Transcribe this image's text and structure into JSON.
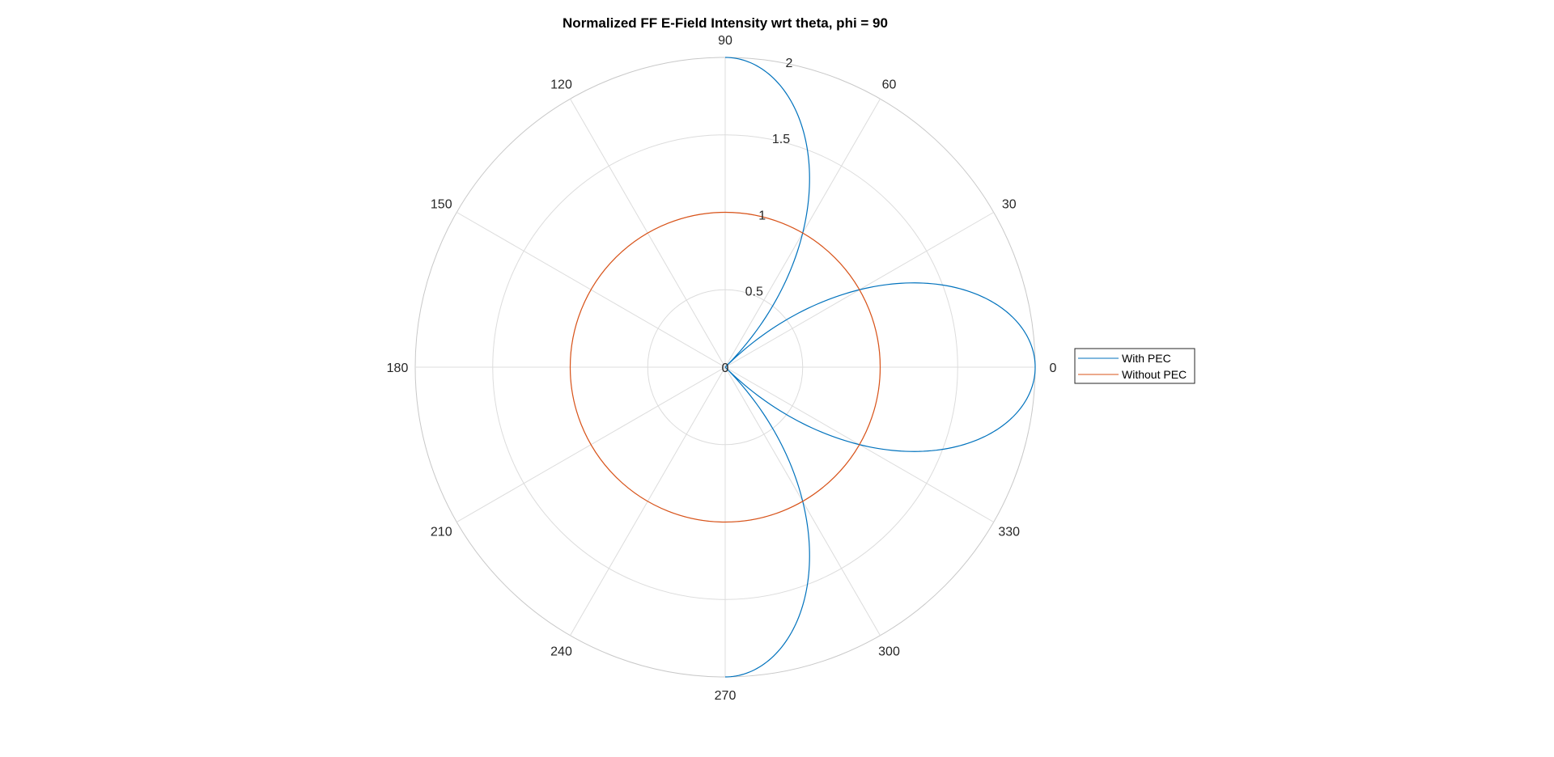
{
  "chart_data": {
    "type": "polar-line",
    "title": "Normalized FF E-Field Intensity wrt theta, phi = 90",
    "angle_unit": "degrees",
    "theta_ticks": [
      "0",
      "30",
      "60",
      "90",
      "120",
      "150",
      "180",
      "210",
      "240",
      "270",
      "300",
      "330"
    ],
    "theta_tick_values": [
      0,
      30,
      60,
      90,
      120,
      150,
      180,
      210,
      240,
      270,
      300,
      330
    ],
    "r_ticks": [
      "0",
      "0.5",
      "1",
      "1.5",
      "2"
    ],
    "r_tick_values": [
      0,
      0.5,
      1,
      1.5,
      2
    ],
    "rlim": [
      0,
      2
    ],
    "grid": true,
    "legend_position": "right",
    "series": [
      {
        "name": "With PEC",
        "color": "#0072BD",
        "description_points": [
          {
            "theta": 0,
            "r": 2
          },
          {
            "theta": 22.5,
            "r": 1.414
          },
          {
            "theta": 45,
            "r": 0
          },
          {
            "theta": 67.5,
            "r": 1.414
          },
          {
            "theta": 90,
            "r": 2
          }
        ],
        "formula": "r = 2*|cos(2*theta)| for theta in [-90,90]"
      },
      {
        "name": "Without PEC",
        "color": "#D95319",
        "description_points": [
          {
            "theta": 0,
            "r": 1
          },
          {
            "theta": 90,
            "r": 1
          },
          {
            "theta": 180,
            "r": 1
          },
          {
            "theta": 270,
            "r": 1
          }
        ],
        "formula": "r = 1"
      }
    ],
    "axis_colors": {
      "grid": "#DCDCDC",
      "outer": "#C8C8C8",
      "text": "#262626"
    }
  }
}
